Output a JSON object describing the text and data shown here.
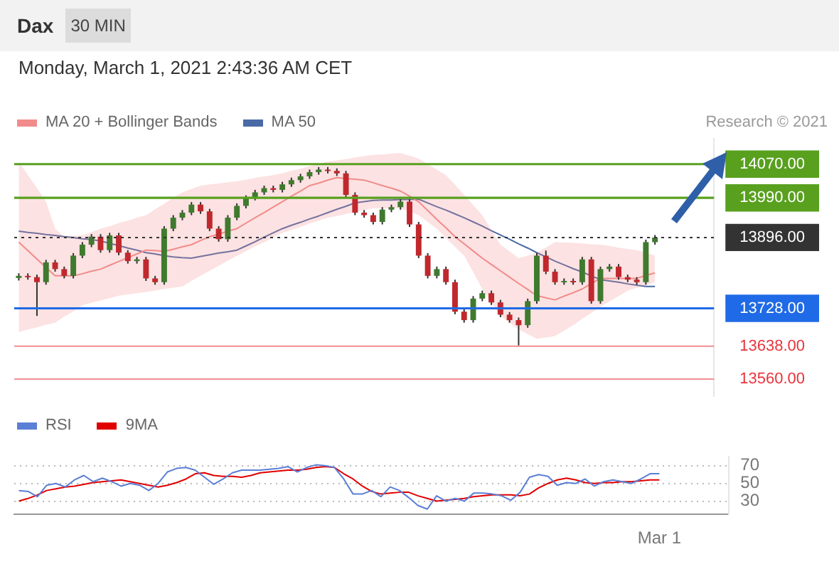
{
  "chart_data": [
    {
      "type": "candlestick",
      "title": "Dax",
      "subtitle": "Monday, March 1, 2021 2:43:36 AM CET",
      "annotations": [
        "30 MIN",
        "Research © 2021"
      ],
      "categories": [
        null,
        null,
        null,
        null,
        null,
        null,
        null,
        null,
        null,
        null,
        null,
        null,
        null,
        null,
        null,
        null,
        null,
        null,
        null,
        null,
        null,
        null,
        null,
        null,
        null,
        null,
        null,
        null,
        null,
        null,
        null,
        null,
        null,
        null,
        null,
        null,
        null,
        null,
        null,
        null,
        null,
        null,
        null,
        null,
        null,
        null,
        null,
        null,
        null,
        null,
        null,
        null,
        null,
        null,
        null,
        null,
        null,
        null,
        null,
        null,
        null,
        null,
        null,
        null,
        null,
        null,
        null,
        null,
        null,
        null,
        null
      ],
      "ohlc": [
        [
          13800,
          13811,
          13794,
          13805
        ],
        [
          13805,
          13811,
          13796,
          13802
        ],
        [
          13802,
          13808,
          13710,
          13790
        ],
        [
          13790,
          13843,
          13784,
          13837
        ],
        [
          13837,
          13843,
          13815,
          13821
        ],
        [
          13821,
          13827,
          13799,
          13805
        ],
        [
          13805,
          13859,
          13799,
          13853
        ],
        [
          13853,
          13885,
          13847,
          13879
        ],
        [
          13879,
          13904,
          13873,
          13898
        ],
        [
          13898,
          13904,
          13860,
          13866
        ],
        [
          13866,
          13907,
          13860,
          13901
        ],
        [
          13901,
          13907,
          13854,
          13860
        ],
        [
          13860,
          13866,
          13834,
          13840
        ],
        [
          13840,
          13850,
          13834,
          13844
        ],
        [
          13844,
          13850,
          13793,
          13799
        ],
        [
          13799,
          13805,
          13784,
          13790
        ],
        [
          13790,
          13923,
          13784,
          13917
        ],
        [
          13917,
          13949,
          13911,
          13943
        ],
        [
          13943,
          13961,
          13937,
          13955
        ],
        [
          13955,
          13980,
          13949,
          13974
        ],
        [
          13974,
          13980,
          13952,
          13958
        ],
        [
          13958,
          13964,
          13911,
          13917
        ],
        [
          13917,
          13923,
          13886,
          13892
        ],
        [
          13892,
          13949,
          13886,
          13943
        ],
        [
          13943,
          13977,
          13937,
          13971
        ],
        [
          13971,
          13996,
          13965,
          13990
        ],
        [
          13990,
          14009,
          13984,
          14003
        ],
        [
          14003,
          14019,
          13997,
          14013
        ],
        [
          14013,
          14019,
          14003,
          14009
        ],
        [
          14009,
          14028,
          14003,
          14022
        ],
        [
          14022,
          14038,
          14016,
          14032
        ],
        [
          14032,
          14047,
          14026,
          14041
        ],
        [
          14041,
          14057,
          14035,
          14051
        ],
        [
          14051,
          14063,
          14045,
          14057
        ],
        [
          14057,
          14063,
          14048,
          14054
        ],
        [
          14054,
          14060,
          14042,
          14048
        ],
        [
          14048,
          14054,
          13991,
          13997
        ],
        [
          13997,
          14003,
          13949,
          13955
        ],
        [
          13955,
          13961,
          13943,
          13949
        ],
        [
          13949,
          13955,
          13927,
          13933
        ],
        [
          13933,
          13968,
          13927,
          13962
        ],
        [
          13962,
          13974,
          13956,
          13968
        ],
        [
          13968,
          13987,
          13962,
          13981
        ],
        [
          13981,
          13987,
          13921,
          13927
        ],
        [
          13927,
          13933,
          13847,
          13853
        ],
        [
          13853,
          13859,
          13799,
          13805
        ],
        [
          13805,
          13827,
          13799,
          13821
        ],
        [
          13821,
          13827,
          13784,
          13790
        ],
        [
          13790,
          13796,
          13714,
          13720
        ],
        [
          13720,
          13726,
          13694,
          13700
        ],
        [
          13700,
          13757,
          13694,
          13751
        ],
        [
          13751,
          13770,
          13745,
          13764
        ],
        [
          13764,
          13770,
          13736,
          13742
        ],
        [
          13742,
          13748,
          13707,
          13713
        ],
        [
          13713,
          13719,
          13694,
          13700
        ],
        [
          13700,
          13706,
          13640,
          13688
        ],
        [
          13688,
          13751,
          13682,
          13745
        ],
        [
          13745,
          13859,
          13739,
          13853
        ],
        [
          13853,
          13865,
          13809,
          13815
        ],
        [
          13815,
          13821,
          13784,
          13790
        ],
        [
          13790,
          13799,
          13784,
          13793
        ],
        [
          13793,
          13799,
          13784,
          13790
        ],
        [
          13790,
          13850,
          13784,
          13844
        ],
        [
          13844,
          13850,
          13739,
          13745
        ],
        [
          13745,
          13827,
          13739,
          13821
        ],
        [
          13821,
          13833,
          13815,
          13827
        ],
        [
          13827,
          13833,
          13796,
          13802
        ],
        [
          13802,
          13808,
          13790,
          13796
        ],
        [
          13796,
          13802,
          13784,
          13790
        ],
        [
          13790,
          13891,
          13784,
          13885
        ],
        [
          13885,
          13902,
          13879,
          13896
        ]
      ],
      "series": [
        {
          "name": "MA 20 + Bollinger Bands",
          "type": "line",
          "color": "#f28b8b",
          "values": [
            13885,
            13865,
            13845,
            13825,
            13805,
            13805,
            13805,
            13810,
            13816,
            13821,
            13830,
            13839,
            13848,
            13857,
            13866,
            13865,
            13863,
            13868,
            13874,
            13879,
            13889,
            13898,
            13904,
            13911,
            13917,
            13930,
            13943,
            13955,
            13968,
            13981,
            13994,
            14006,
            14019,
            14025,
            14032,
            14038,
            14036,
            14034,
            14032,
            14026,
            14019,
            14013,
            14006,
            13994,
            13981,
            13960,
            13939,
            13919,
            13898,
            13881,
            13864,
            13847,
            13832,
            13817,
            13802,
            13787,
            13773,
            13758,
            13753,
            13748,
            13757,
            13765,
            13774,
            13787,
            13799,
            13799,
            13799,
            13799,
            13799,
            13806,
            13812
          ],
          "upper": [
            14076,
            14044,
            14013,
            13981,
            13917,
            13898,
            13900,
            13901,
            13909,
            13917,
            13923,
            13930,
            13936,
            13943,
            13949,
            13963,
            13976,
            13990,
            14003,
            14011,
            14019,
            14022,
            14024,
            14027,
            14029,
            14033,
            14037,
            14041,
            14044,
            14048,
            14054,
            14059,
            14065,
            14070,
            14076,
            14079,
            14082,
            14086,
            14089,
            14092,
            14093,
            14095,
            14096,
            14090,
            14083,
            14070,
            14057,
            14044,
            14021,
            13997,
            13973,
            13949,
            13914,
            13879,
            13863,
            13847,
            13853,
            13860,
            13872,
            13885,
            13884,
            13883,
            13882,
            13880,
            13879,
            13876,
            13872,
            13869,
            13866,
            13860,
            13853
          ],
          "lower": [
            13672,
            13678,
            13683,
            13689,
            13694,
            13708,
            13721,
            13735,
            13741,
            13747,
            13752,
            13758,
            13761,
            13764,
            13767,
            13770,
            13774,
            13777,
            13780,
            13793,
            13805,
            13817,
            13829,
            13841,
            13853,
            13864,
            13875,
            13885,
            13896,
            13907,
            13914,
            13921,
            13929,
            13936,
            13943,
            13947,
            13952,
            13956,
            13961,
            13965,
            13965,
            13965,
            13965,
            13957,
            13949,
            13933,
            13917,
            13895,
            13874,
            13853,
            13814,
            13774,
            13742,
            13710,
            13694,
            13678,
            13667,
            13656,
            13659,
            13662,
            13675,
            13688,
            13703,
            13717,
            13732,
            13745,
            13757,
            13770,
            13777,
            13783,
            13790
          ]
        },
        {
          "name": "MA 50",
          "type": "line",
          "color": "#4a6aa5",
          "values": [
            13911,
            13908,
            13906,
            13903,
            13901,
            13898,
            13896,
            13893,
            13891,
            13888,
            13882,
            13877,
            13871,
            13866,
            13860,
            13857,
            13853,
            13850,
            13848,
            13847,
            13851,
            13855,
            13859,
            13862,
            13866,
            13876,
            13886,
            13897,
            13907,
            13917,
            13925,
            13932,
            13940,
            13947,
            13955,
            13963,
            13970,
            13978,
            13981,
            13984,
            13985,
            13985,
            13986,
            13986,
            13987,
            13978,
            13969,
            13961,
            13952,
            13943,
            13933,
            13923,
            13912,
            13902,
            13892,
            13881,
            13871,
            13860,
            13850,
            13840,
            13831,
            13822,
            13814,
            13805,
            13796,
            13793,
            13790,
            13786,
            13783,
            13780,
            13780
          ]
        }
      ],
      "ylim": [
        13520,
        14130
      ],
      "yticks": [
        {
          "value": 13560,
          "label": "13560.00"
        },
        {
          "value": 13638,
          "label": "13638.00"
        },
        {
          "value": 13728,
          "label": "13728.00"
        },
        {
          "value": 13896,
          "label": "13896.00"
        },
        {
          "value": 13990,
          "label": "13990.00"
        },
        {
          "value": 14070,
          "label": "14070.00"
        }
      ],
      "ref_lines": [
        {
          "axis": "y",
          "value": 14070,
          "color": "#58a01e"
        },
        {
          "axis": "y",
          "value": 13990,
          "color": "#58a01e"
        },
        {
          "axis": "y",
          "value": 13896,
          "color": "#333333",
          "line_style": "dotted"
        },
        {
          "axis": "y",
          "value": 13728,
          "color": "#1f6ae6"
        },
        {
          "axis": "y",
          "value": 13638,
          "color": "#e8333b"
        },
        {
          "axis": "y",
          "value": 13560,
          "color": "#e8333b"
        }
      ],
      "legend": "top left",
      "tick_labels": "y"
    },
    {
      "type": "line",
      "categories": [
        null,
        null,
        null,
        null,
        null,
        null,
        null,
        null,
        null,
        null,
        null,
        null,
        null,
        null,
        null,
        null,
        null,
        null,
        null,
        null,
        null,
        null,
        null,
        null,
        null,
        null,
        null,
        null,
        null,
        null,
        null,
        null,
        null,
        null,
        null,
        null,
        null,
        null,
        null,
        null,
        null,
        null,
        null,
        null,
        null,
        null,
        null,
        null,
        null,
        null,
        null,
        null,
        null,
        null,
        null,
        null,
        null,
        null,
        null,
        null,
        null,
        null,
        null,
        null,
        null,
        null,
        null,
        null,
        null,
        "Mar 1",
        null
      ],
      "series": [
        {
          "name": "RSI",
          "color": "#5b7fd6",
          "values": [
            42,
            41,
            35,
            48,
            50,
            46,
            54,
            59,
            52,
            56,
            52,
            47,
            50,
            48,
            42,
            50,
            63,
            67,
            68,
            65,
            57,
            49,
            55,
            62,
            65,
            65,
            65,
            66,
            67,
            69,
            63,
            68,
            71,
            70,
            68,
            55,
            38,
            38,
            42,
            35,
            46,
            42,
            34,
            25,
            21,
            36,
            30,
            33,
            30,
            39,
            39,
            38,
            36,
            31,
            40,
            57,
            60,
            58,
            48,
            51,
            50,
            55,
            47,
            52,
            54,
            52,
            50,
            55,
            61,
            61,
            null
          ]
        },
        {
          "name": "9MA",
          "color": "#e00000",
          "values": [
            30,
            33,
            37,
            42,
            44,
            46,
            47,
            49,
            51,
            52,
            53,
            54,
            52,
            50,
            48,
            46,
            48,
            51,
            55,
            61,
            62,
            59,
            58,
            58,
            57,
            59,
            62,
            63,
            64,
            65,
            65,
            66,
            68,
            69,
            68,
            61,
            55,
            47,
            41,
            38,
            39,
            40,
            40,
            36,
            33,
            30,
            31,
            32,
            33,
            35,
            36,
            37,
            37,
            37,
            36,
            38,
            45,
            50,
            54,
            56,
            54,
            51,
            50,
            51,
            51,
            52,
            52,
            53,
            54,
            54,
            null
          ]
        }
      ],
      "ylim": [
        15,
        80
      ],
      "yticks": [
        30,
        50,
        70
      ],
      "grid": "y",
      "legend": "top left"
    }
  ]
}
